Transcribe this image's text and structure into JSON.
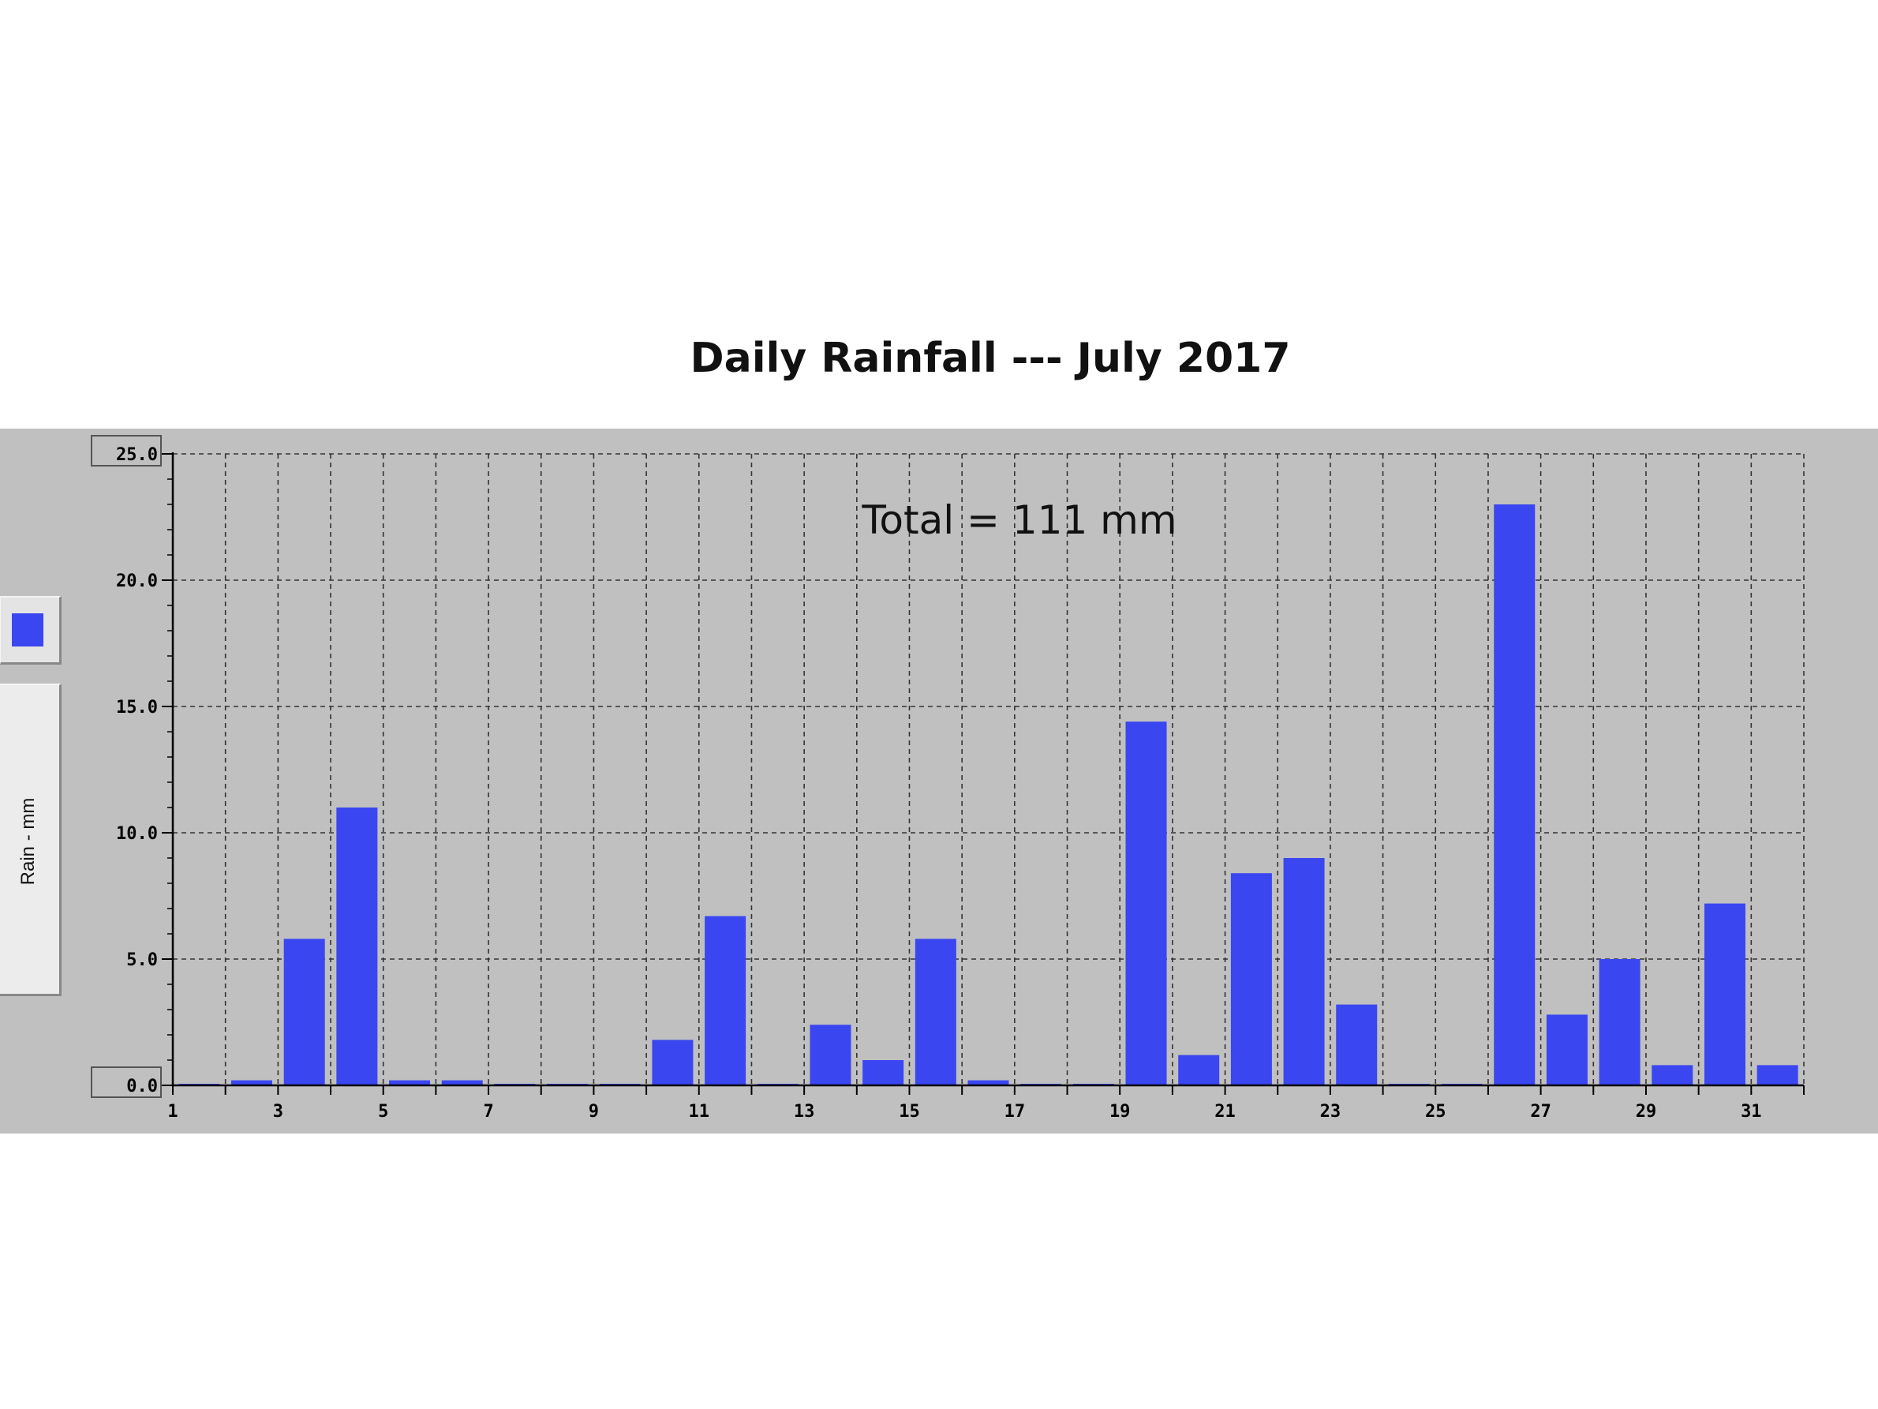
{
  "chart_data": {
    "type": "bar",
    "title": "Daily Rainfall --- July 2017",
    "ylabel": "Rain - mm",
    "xlabel": "",
    "annotation": "Total = 111 mm",
    "x": [
      1,
      2,
      3,
      4,
      5,
      6,
      7,
      8,
      9,
      10,
      11,
      12,
      13,
      14,
      15,
      16,
      17,
      18,
      19,
      20,
      21,
      22,
      23,
      24,
      25,
      26,
      27,
      28,
      29,
      30,
      31
    ],
    "values": [
      0.0,
      0.2,
      5.8,
      11.0,
      0.2,
      0.2,
      0.0,
      0.0,
      0.0,
      1.8,
      6.7,
      0.0,
      2.4,
      1.0,
      5.8,
      0.2,
      0.0,
      0.0,
      14.4,
      1.2,
      8.4,
      9.0,
      3.2,
      0.0,
      0.0,
      23.0,
      2.8,
      5.0,
      0.8,
      7.2,
      0.8
    ],
    "x_tick_labels": [
      "1",
      "3",
      "5",
      "7",
      "9",
      "11",
      "13",
      "15",
      "17",
      "19",
      "21",
      "23",
      "25",
      "27",
      "29",
      "31"
    ],
    "y_tick_labels": [
      "0.0",
      "5.0",
      "10.0",
      "15.0",
      "20.0",
      "25.0"
    ],
    "ylim": [
      0,
      25
    ],
    "grid": true,
    "colors": {
      "bar": "#3a46f0",
      "panel": "#c0c0c0",
      "grid": "#333333"
    }
  }
}
